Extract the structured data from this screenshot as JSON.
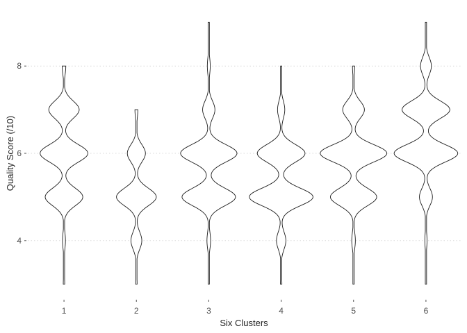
{
  "chart_data": {
    "type": "violin",
    "title": "",
    "xlabel": "Six Clusters",
    "ylabel": "Quality Score (/10)",
    "categories": [
      "1",
      "2",
      "3",
      "4",
      "5",
      "6"
    ],
    "yticks": [
      4,
      6,
      8
    ],
    "ylim": [
      2.9,
      9.1
    ],
    "grid": "horizontal-dotted",
    "legend": "none",
    "line_color": "#1a1a1a",
    "violins": [
      {
        "category": "1",
        "min": 3,
        "max": 8,
        "modes": [
          {
            "y": 3,
            "w": 0.02
          },
          {
            "y": 4,
            "w": 0.04
          },
          {
            "y": 5,
            "w": 0.52
          },
          {
            "y": 6,
            "w": 0.66
          },
          {
            "y": 7,
            "w": 0.42
          },
          {
            "y": 8,
            "w": 0.05
          }
        ]
      },
      {
        "category": "2",
        "min": 3,
        "max": 7,
        "modes": [
          {
            "y": 3,
            "w": 0.02
          },
          {
            "y": 4,
            "w": 0.15
          },
          {
            "y": 5,
            "w": 0.55
          },
          {
            "y": 6,
            "w": 0.25
          },
          {
            "y": 7,
            "w": 0.04
          }
        ]
      },
      {
        "category": "3",
        "min": 3,
        "max": 9,
        "modes": [
          {
            "y": 3,
            "w": 0.01
          },
          {
            "y": 4,
            "w": 0.05
          },
          {
            "y": 5,
            "w": 0.74
          },
          {
            "y": 6,
            "w": 0.78
          },
          {
            "y": 7,
            "w": 0.17
          },
          {
            "y": 8,
            "w": 0.04
          },
          {
            "y": 9,
            "w": 0.01
          }
        ]
      },
      {
        "category": "4",
        "min": 3,
        "max": 8,
        "modes": [
          {
            "y": 3,
            "w": 0.02
          },
          {
            "y": 4,
            "w": 0.13
          },
          {
            "y": 5,
            "w": 0.88
          },
          {
            "y": 6,
            "w": 0.66
          },
          {
            "y": 7,
            "w": 0.1
          },
          {
            "y": 8,
            "w": 0.01
          }
        ]
      },
      {
        "category": "5",
        "min": 3,
        "max": 8,
        "modes": [
          {
            "y": 3,
            "w": 0.01
          },
          {
            "y": 4,
            "w": 0.05
          },
          {
            "y": 5,
            "w": 0.64
          },
          {
            "y": 6,
            "w": 0.92
          },
          {
            "y": 7,
            "w": 0.3
          },
          {
            "y": 8,
            "w": 0.03
          }
        ]
      },
      {
        "category": "6",
        "min": 3,
        "max": 9,
        "modes": [
          {
            "y": 3,
            "w": 0.01
          },
          {
            "y": 4,
            "w": 0.03
          },
          {
            "y": 5,
            "w": 0.18
          },
          {
            "y": 6,
            "w": 0.88
          },
          {
            "y": 7,
            "w": 0.66
          },
          {
            "y": 8,
            "w": 0.15
          },
          {
            "y": 9,
            "w": 0.01
          }
        ]
      }
    ]
  }
}
